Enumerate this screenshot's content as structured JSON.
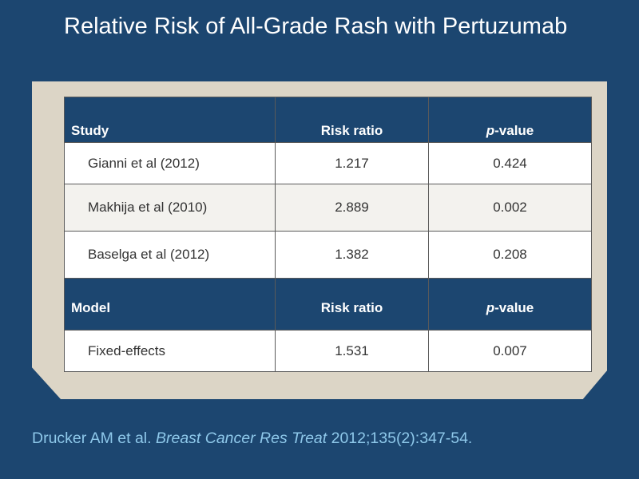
{
  "title": "Relative Risk of All-Grade Rash with Pertuzumab",
  "table": {
    "study_header": {
      "label": "Study",
      "risk_ratio": "Risk ratio",
      "p_value_italic": "p",
      "p_value_rest": "-value"
    },
    "studies": [
      {
        "study": "Gianni et al (2012)",
        "risk_ratio": "1.217",
        "p_value": "0.424"
      },
      {
        "study": "Makhija et al (2010)",
        "risk_ratio": "2.889",
        "p_value": "0.002"
      },
      {
        "study": "Baselga et al (2012)",
        "risk_ratio": "1.382",
        "p_value": "0.208"
      }
    ],
    "model_header": {
      "label": "Model",
      "risk_ratio": "Risk ratio",
      "p_value_italic": "p",
      "p_value_rest": "-value"
    },
    "models": [
      {
        "model": "Fixed-effects",
        "risk_ratio": "1.531",
        "p_value": "0.007"
      }
    ]
  },
  "citation": {
    "authors": "Drucker AM et al.",
    "journal": "Breast Cancer Res Treat",
    "details": "2012;135(2):347-54."
  },
  "colors": {
    "background": "#1c4670",
    "panel": "#dcd5c6",
    "citation": "#8ec8ea"
  }
}
